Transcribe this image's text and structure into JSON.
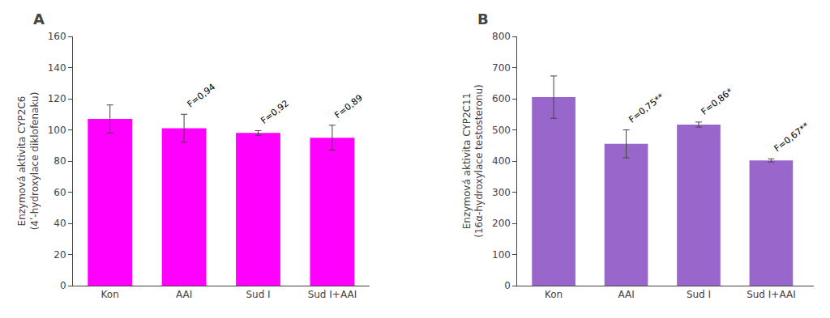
{
  "chart_data": [
    {
      "type": "bar",
      "title": "A",
      "categories": [
        "Kon",
        "AAI",
        "Sud I",
        "Sud I+AAI"
      ],
      "values": [
        107,
        101,
        98,
        95
      ],
      "errors": [
        9,
        9,
        1.5,
        8
      ],
      "color": "#FF00FF",
      "ylabel": "Enzymová aktivita CYP2C6\n(4ʹ-hydroxylace diklofenaku)",
      "ylim": [
        0,
        160
      ],
      "yticks": [
        0,
        20,
        40,
        60,
        80,
        100,
        120,
        140,
        160
      ],
      "grid": false,
      "annotations": [
        {
          "text": "F=0,94",
          "category": "AAI"
        },
        {
          "text": "F=0,92",
          "category": "Sud I"
        },
        {
          "text": "F=0,89",
          "category": "Sud I+AAI"
        }
      ]
    },
    {
      "type": "bar",
      "title": "B",
      "categories": [
        "Kon",
        "AAI",
        "Sud I",
        "Sud I+AAI"
      ],
      "values": [
        605,
        455,
        517,
        402
      ],
      "errors": [
        68,
        45,
        8,
        5
      ],
      "color": "#9966CC",
      "ylabel": "Enzymová aktivita CYP2C11\n(16α-hydroxylace testosteronu)",
      "ylim": [
        0,
        800
      ],
      "yticks": [
        0,
        100,
        200,
        300,
        400,
        500,
        600,
        700,
        800
      ],
      "grid": false,
      "annotations": [
        {
          "text": "F=0,75**",
          "category": "AAI"
        },
        {
          "text": "F=0,86*",
          "category": "Sud I"
        },
        {
          "text": "F=0,67**",
          "category": "Sud I+AAI"
        }
      ]
    }
  ]
}
